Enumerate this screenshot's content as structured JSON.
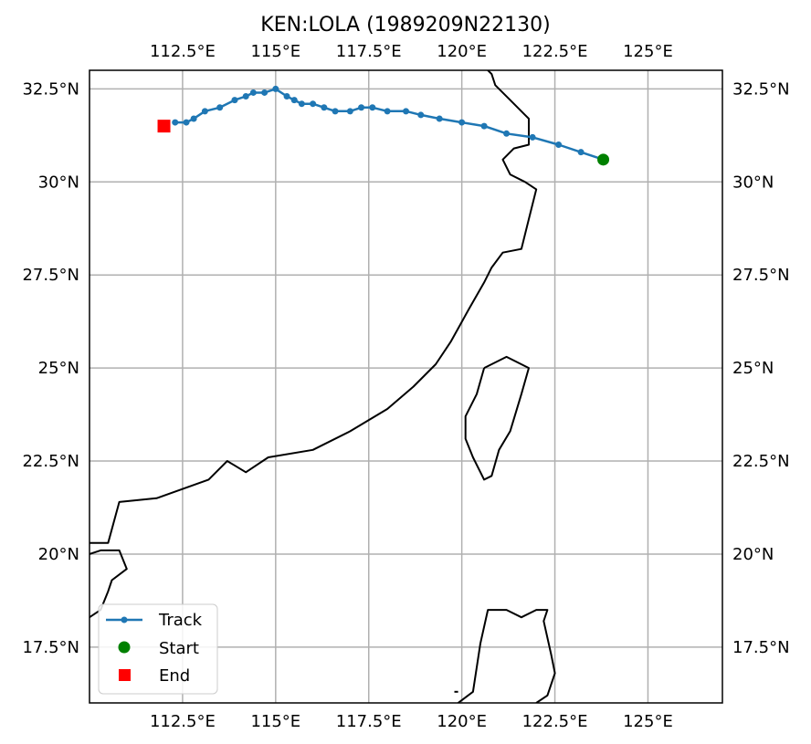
{
  "title": "KEN:LOLA (1989209N22130)",
  "map": {
    "lon_range": [
      110.0,
      127.0
    ],
    "lat_range": [
      16.0,
      33.0
    ],
    "x_ticks": [
      {
        "value": 112.5,
        "label": "112.5°E"
      },
      {
        "value": 115.0,
        "label": "115°E"
      },
      {
        "value": 117.5,
        "label": "117.5°E"
      },
      {
        "value": 120.0,
        "label": "120°E"
      },
      {
        "value": 122.5,
        "label": "122.5°E"
      },
      {
        "value": 125.0,
        "label": "125°E"
      }
    ],
    "y_ticks": [
      {
        "value": 32.5,
        "label": "32.5°N"
      },
      {
        "value": 30.0,
        "label": "30°N"
      },
      {
        "value": 27.5,
        "label": "27.5°N"
      },
      {
        "value": 25.0,
        "label": "25°N"
      },
      {
        "value": 22.5,
        "label": "22.5°N"
      },
      {
        "value": 20.0,
        "label": "20°N"
      },
      {
        "value": 17.5,
        "label": "17.5°N"
      }
    ],
    "grid": true
  },
  "chart_data": {
    "type": "line",
    "series": [
      {
        "name": "Track",
        "color": "#1f77b4",
        "points": [
          [
            123.8,
            30.6
          ],
          [
            123.2,
            30.8
          ],
          [
            122.6,
            31.0
          ],
          [
            121.9,
            31.2
          ],
          [
            121.2,
            31.3
          ],
          [
            120.6,
            31.5
          ],
          [
            120.0,
            31.6
          ],
          [
            119.4,
            31.7
          ],
          [
            118.9,
            31.8
          ],
          [
            118.5,
            31.9
          ],
          [
            118.0,
            31.9
          ],
          [
            117.6,
            32.0
          ],
          [
            117.3,
            32.0
          ],
          [
            117.0,
            31.9
          ],
          [
            116.6,
            31.9
          ],
          [
            116.3,
            32.0
          ],
          [
            116.0,
            32.1
          ],
          [
            115.7,
            32.1
          ],
          [
            115.5,
            32.2
          ],
          [
            115.3,
            32.3
          ],
          [
            115.0,
            32.5
          ],
          [
            114.7,
            32.4
          ],
          [
            114.4,
            32.4
          ],
          [
            114.2,
            32.3
          ],
          [
            113.9,
            32.2
          ],
          [
            113.5,
            32.0
          ],
          [
            113.1,
            31.9
          ],
          [
            112.8,
            31.7
          ],
          [
            112.6,
            31.6
          ],
          [
            112.3,
            31.6
          ]
        ]
      }
    ],
    "start": {
      "label": "Start",
      "lon": 123.8,
      "lat": 30.6,
      "color": "#008000"
    },
    "end": {
      "label": "End",
      "lon": 112.0,
      "lat": 31.5,
      "color": "#ff0000"
    },
    "legend": {
      "placement": "lower-left",
      "entries": [
        {
          "label": "Track",
          "kind": "line-dot",
          "color": "#1f77b4"
        },
        {
          "label": "Start",
          "kind": "circle",
          "color": "#008000"
        },
        {
          "label": "End",
          "kind": "square",
          "color": "#ff0000"
        }
      ]
    }
  },
  "coastlines": [
    [
      [
        110.0,
        20.3
      ],
      [
        110.5,
        20.3
      ],
      [
        110.8,
        21.4
      ],
      [
        111.8,
        21.5
      ],
      [
        113.2,
        22.0
      ],
      [
        113.7,
        22.5
      ],
      [
        114.2,
        22.2
      ],
      [
        114.8,
        22.6
      ],
      [
        116.0,
        22.8
      ],
      [
        117.0,
        23.3
      ],
      [
        118.0,
        23.9
      ],
      [
        118.7,
        24.5
      ],
      [
        119.3,
        25.1
      ],
      [
        119.7,
        25.7
      ],
      [
        120.2,
        26.6
      ],
      [
        120.6,
        27.3
      ],
      [
        120.8,
        27.7
      ],
      [
        121.1,
        28.1
      ],
      [
        121.6,
        28.2
      ],
      [
        121.8,
        29.0
      ],
      [
        122.0,
        29.8
      ],
      [
        121.7,
        30.0
      ],
      [
        121.3,
        30.2
      ],
      [
        121.1,
        30.6
      ],
      [
        121.4,
        30.9
      ],
      [
        121.8,
        31.0
      ],
      [
        121.8,
        31.7
      ],
      [
        121.7,
        31.8
      ],
      [
        121.3,
        32.2
      ],
      [
        120.9,
        32.6
      ],
      [
        120.8,
        32.9
      ],
      [
        120.7,
        33.0
      ]
    ],
    [
      [
        120.6,
        25.0
      ],
      [
        121.2,
        25.3
      ],
      [
        121.8,
        25.0
      ],
      [
        121.6,
        24.3
      ],
      [
        121.3,
        23.3
      ],
      [
        121.0,
        22.8
      ],
      [
        120.8,
        22.1
      ],
      [
        120.6,
        22.0
      ],
      [
        120.3,
        22.6
      ],
      [
        120.1,
        23.1
      ],
      [
        120.1,
        23.7
      ],
      [
        120.4,
        24.3
      ],
      [
        120.6,
        25.0
      ]
    ],
    [
      [
        110.0,
        20.0
      ],
      [
        110.3,
        20.1
      ],
      [
        110.8,
        20.1
      ],
      [
        111.0,
        19.6
      ],
      [
        110.6,
        19.3
      ],
      [
        110.5,
        19.0
      ],
      [
        110.3,
        18.5
      ],
      [
        110.0,
        18.3
      ]
    ],
    [
      [
        119.9,
        16.0
      ],
      [
        120.3,
        16.3
      ],
      [
        120.5,
        17.6
      ],
      [
        120.7,
        18.5
      ],
      [
        121.2,
        18.5
      ],
      [
        121.6,
        18.3
      ],
      [
        122.0,
        18.5
      ],
      [
        122.3,
        18.5
      ],
      [
        122.2,
        18.2
      ],
      [
        122.4,
        17.3
      ],
      [
        122.5,
        16.8
      ],
      [
        122.3,
        16.2
      ],
      [
        122.0,
        16.0
      ]
    ],
    [
      [
        119.8,
        16.3
      ],
      [
        119.9,
        16.3
      ]
    ]
  ]
}
